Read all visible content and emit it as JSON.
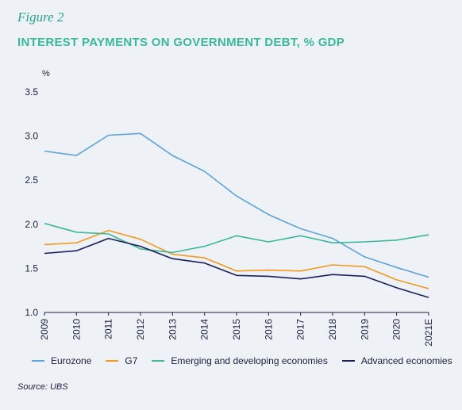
{
  "figure_label": "Figure 2",
  "source": "Source: UBS",
  "chart_data": {
    "type": "line",
    "title": "INTEREST PAYMENTS ON GOVERNMENT DEBT, % GDP",
    "ylabel": "%",
    "xlabel": "",
    "ylim": [
      1.0,
      3.5
    ],
    "yticks": [
      "1.0",
      "1.5",
      "2.0",
      "2.5",
      "3.0",
      "3.5"
    ],
    "categories": [
      "2009",
      "2010",
      "2011",
      "2012",
      "2013",
      "2014",
      "2015",
      "2016",
      "2017",
      "2018",
      "2019",
      "2020",
      "2021E"
    ],
    "grid": false,
    "legend_position": "bottom",
    "series": [
      {
        "name": "Eurozone",
        "color": "#5ba3d9",
        "values": [
          2.83,
          2.78,
          3.01,
          3.03,
          2.78,
          2.6,
          2.32,
          2.11,
          1.95,
          1.84,
          1.63,
          1.51,
          1.4
        ]
      },
      {
        "name": "G7",
        "color": "#f39a1e",
        "values": [
          1.77,
          1.79,
          1.93,
          1.83,
          1.66,
          1.62,
          1.47,
          1.48,
          1.47,
          1.54,
          1.52,
          1.37,
          1.27
        ]
      },
      {
        "name": "Emerging and developing economies",
        "color": "#3bb89c",
        "values": [
          2.01,
          1.91,
          1.89,
          1.72,
          1.68,
          1.75,
          1.87,
          1.8,
          1.87,
          1.79,
          1.8,
          1.82,
          1.88
        ]
      },
      {
        "name": "Advanced economies",
        "color": "#1a1f5c",
        "values": [
          1.67,
          1.7,
          1.84,
          1.75,
          1.61,
          1.56,
          1.42,
          1.41,
          1.38,
          1.43,
          1.41,
          1.28,
          1.17
        ]
      }
    ]
  }
}
